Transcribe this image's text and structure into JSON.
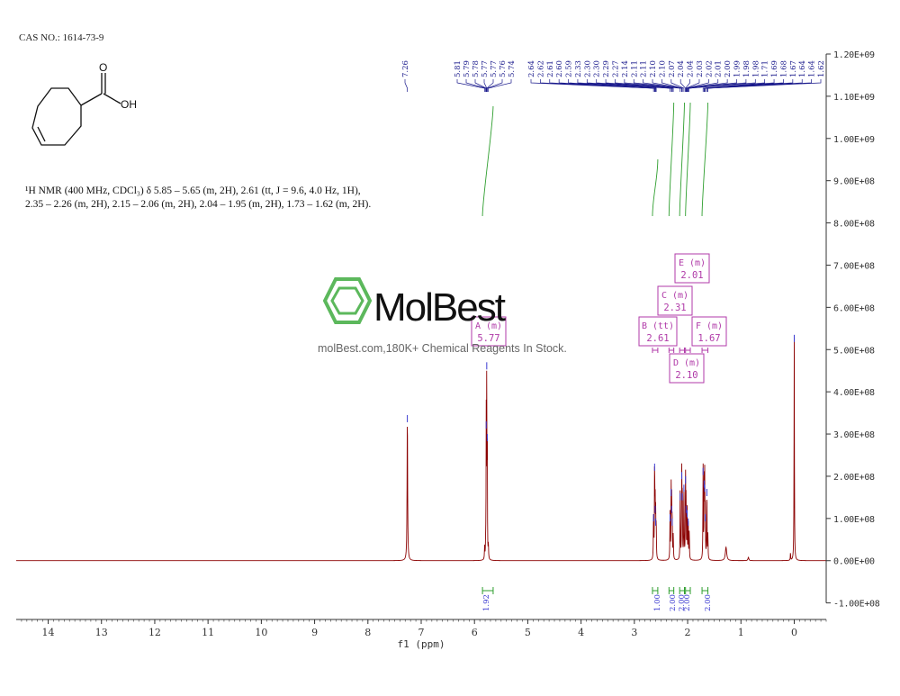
{
  "header": {
    "cas": "CAS NO.: 1614-73-9"
  },
  "structure": {
    "oh_label": "OH",
    "o_label": "O"
  },
  "description": {
    "text": "¹H NMR (400 MHz, CDCl₃) δ 5.85 – 5.65 (m, 2H), 2.61 (tt, J = 9.6, 4.0 Hz, 1H), 2.35 – 2.26 (m, 2H), 2.15 – 2.06 (m, 2H), 2.04 – 1.95 (m, 2H), 1.73 – 1.62 (m, 2H)."
  },
  "watermark": {
    "brand": "MolBest",
    "tagline": "molBest.com,180K+ Chemical Reagents In Stock."
  },
  "colors": {
    "spectrum": "#8b0000",
    "integral": "#2e9e2e",
    "peak_label": "#1a1a8c",
    "multiplet_box": "#b03aa8",
    "axis": "#333333",
    "logo_green": "#5cb85c"
  },
  "chart_data": {
    "type": "line",
    "xlabel": "f1 (ppm)",
    "xlim": [
      14.6,
      -0.6
    ],
    "x_ticks": [
      "14",
      "13",
      "12",
      "11",
      "10",
      "9",
      "8",
      "7",
      "6",
      "5",
      "4",
      "3",
      "2",
      "1",
      "0"
    ],
    "x_tick_values": [
      14,
      13,
      12,
      11,
      10,
      9,
      8,
      7,
      6,
      5,
      4,
      3,
      2,
      1,
      0
    ],
    "ylim": [
      -120000000.0,
      1200000000.0
    ],
    "y_ticks": [
      "1.20E+09",
      "1.10E+09",
      "1.00E+09",
      "9.00E+08",
      "8.00E+08",
      "7.00E+08",
      "6.00E+08",
      "5.00E+08",
      "4.00E+08",
      "3.00E+08",
      "2.00E+08",
      "1.00E+08",
      "0.00E+00",
      "-1.00E+08"
    ],
    "y_tick_values": [
      1200000000.0,
      1100000000.0,
      1000000000.0,
      900000000.0,
      800000000.0,
      700000000.0,
      600000000.0,
      500000000.0,
      400000000.0,
      300000000.0,
      200000000.0,
      100000000.0,
      0,
      -100000000.0
    ],
    "peaks": [
      {
        "ppm": 7.26,
        "height": 345000000.0,
        "width": 0.006
      },
      {
        "ppm": 5.81,
        "height": 30000000.0,
        "width": 0.004
      },
      {
        "ppm": 5.79,
        "height": 38000000.0,
        "width": 0.004
      },
      {
        "ppm": 5.78,
        "height": 330000000.0,
        "width": 0.003
      },
      {
        "ppm": 5.77,
        "height": 470000000.0,
        "width": 0.003
      },
      {
        "ppm": 5.76,
        "height": 300000000.0,
        "width": 0.003
      },
      {
        "ppm": 5.74,
        "height": 35000000.0,
        "width": 0.004
      },
      {
        "ppm": 2.64,
        "height": 110000000.0,
        "width": 0.004
      },
      {
        "ppm": 2.62,
        "height": 230000000.0,
        "width": 0.004
      },
      {
        "ppm": 2.61,
        "height": 130000000.0,
        "width": 0.004
      },
      {
        "ppm": 2.6,
        "height": 100000000.0,
        "width": 0.004
      },
      {
        "ppm": 2.59,
        "height": 80000000.0,
        "width": 0.004
      },
      {
        "ppm": 2.33,
        "height": 110000000.0,
        "width": 0.004
      },
      {
        "ppm": 2.31,
        "height": 170000000.0,
        "width": 0.004
      },
      {
        "ppm": 2.3,
        "height": 130000000.0,
        "width": 0.004
      },
      {
        "ppm": 2.29,
        "height": 100000000.0,
        "width": 0.004
      },
      {
        "ppm": 2.27,
        "height": 60000000.0,
        "width": 0.004
      },
      {
        "ppm": 2.14,
        "height": 160000000.0,
        "width": 0.004
      },
      {
        "ppm": 2.11,
        "height": 210000000.0,
        "width": 0.004
      },
      {
        "ppm": 2.1,
        "height": 160000000.0,
        "width": 0.004
      },
      {
        "ppm": 2.07,
        "height": 180000000.0,
        "width": 0.004
      },
      {
        "ppm": 2.04,
        "height": 200000000.0,
        "width": 0.004
      },
      {
        "ppm": 2.03,
        "height": 130000000.0,
        "width": 0.004
      },
      {
        "ppm": 2.01,
        "height": 120000000.0,
        "width": 0.004
      },
      {
        "ppm": 1.99,
        "height": 100000000.0,
        "width": 0.004
      },
      {
        "ppm": 1.97,
        "height": 70000000.0,
        "width": 0.004
      },
      {
        "ppm": 1.71,
        "height": 220000000.0,
        "width": 0.004
      },
      {
        "ppm": 1.69,
        "height": 190000000.0,
        "width": 0.004
      },
      {
        "ppm": 1.68,
        "height": 180000000.0,
        "width": 0.004
      },
      {
        "ppm": 1.67,
        "height": 110000000.0,
        "width": 0.004
      },
      {
        "ppm": 1.64,
        "height": 170000000.0,
        "width": 0.004
      },
      {
        "ppm": 1.62,
        "height": 60000000.0,
        "width": 0.004
      },
      {
        "ppm": 1.28,
        "height": 32000000.0,
        "width": 0.015
      },
      {
        "ppm": 0.86,
        "height": 8000000.0,
        "width": 0.01
      },
      {
        "ppm": 0.07,
        "height": 18000000.0,
        "width": 0.004
      },
      {
        "ppm": 0.0,
        "height": 535000000.0,
        "width": 0.004
      }
    ],
    "peak_labels": {
      "singles": [
        "7.26"
      ],
      "group1": [
        "5.81",
        "5.79",
        "5.78",
        "5.77",
        "5.77",
        "5.76",
        "5.74"
      ],
      "group2": [
        "2.64",
        "2.62",
        "2.61",
        "2.60",
        "2.59",
        "2.33",
        "2.30",
        "2.30",
        "2.29",
        "2.27",
        "2.14",
        "2.11",
        "2.11",
        "2.10",
        "2.10",
        "2.07",
        "2.04",
        "2.04",
        "2.03",
        "2.02",
        "2.01",
        "2.00",
        "1.99",
        "1.98",
        "1.98",
        "1.71",
        "1.69",
        "1.68",
        "1.67",
        "1.64",
        "1.64",
        "1.62"
      ]
    },
    "multiplets": [
      {
        "letter": "A",
        "mult": "(m)",
        "shift": "5.77",
        "ppm": 5.77
      },
      {
        "letter": "B",
        "mult": "(tt)",
        "shift": "2.61",
        "ppm": 2.61
      },
      {
        "letter": "C",
        "mult": "(m)",
        "shift": "2.31",
        "ppm": 2.31
      },
      {
        "letter": "D",
        "mult": "(m)",
        "shift": "2.10",
        "ppm": 2.1
      },
      {
        "letter": "E",
        "mult": "(m)",
        "shift": "2.01",
        "ppm": 2.01
      },
      {
        "letter": "F",
        "mult": "(m)",
        "shift": "1.67",
        "ppm": 1.67
      }
    ],
    "integrals": [
      {
        "label": "1.92",
        "from": 5.85,
        "to": 5.65
      },
      {
        "label": "1.00",
        "from": 2.66,
        "to": 2.56
      },
      {
        "label": "2.00",
        "from": 2.35,
        "to": 2.26
      },
      {
        "label": "2.00",
        "from": 2.15,
        "to": 2.06
      },
      {
        "label": "2.00",
        "from": 2.04,
        "to": 1.95
      },
      {
        "label": "2.00",
        "from": 1.73,
        "to": 1.62
      }
    ]
  }
}
